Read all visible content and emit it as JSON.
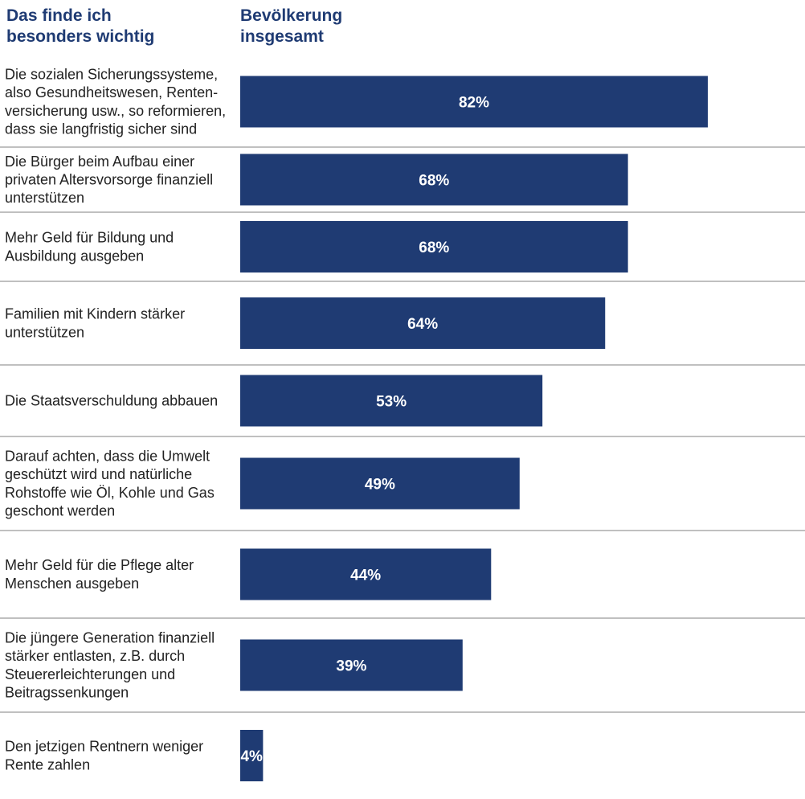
{
  "header": {
    "left_title": [
      "Das finde ich",
      "besonders wichtig"
    ],
    "right_title": [
      "Bevölkerung",
      "insgesamt"
    ]
  },
  "colors": {
    "bar": "#1f3b73",
    "header_text": "#1f3b73",
    "separator": "#9a9a9a",
    "value_label": "#ffffff"
  },
  "chart_data": {
    "type": "bar",
    "orientation": "horizontal",
    "title": "",
    "xlabel": "",
    "ylabel": "",
    "xlim": [
      0,
      100
    ],
    "grid": false,
    "legend": "none",
    "categories": [
      [
        "Die sozialen Sicherungssysteme,",
        "also Gesundheitswesen, Renten-",
        "versicherung usw., so reformieren,",
        "dass sie langfristig sicher sind"
      ],
      [
        "Die Bürger beim Aufbau einer",
        "privaten Altersvorsorge finanziell",
        "unterstützen"
      ],
      [
        "Mehr Geld für Bildung und",
        "Ausbildung ausgeben"
      ],
      [
        "Familien mit Kindern stärker",
        "unterstützen"
      ],
      [
        "Die Staatsverschuldung abbauen"
      ],
      [
        "Darauf achten, dass die Umwelt",
        "geschützt wird und natürliche",
        "Rohstoffe wie Öl, Kohle und Gas",
        "geschont werden"
      ],
      [
        "Mehr Geld für die Pflege alter",
        "Menschen ausgeben"
      ],
      [
        "Die jüngere Generation finanziell",
        "stärker entlasten, z.B. durch",
        "Steuererleichterungen und",
        "Beitragssenkungen"
      ],
      [
        "Den jetzigen Rentnern weniger",
        "Rente zahlen"
      ]
    ],
    "values": [
      82,
      68,
      68,
      64,
      53,
      49,
      44,
      39,
      4
    ],
    "value_labels": [
      "82%",
      "68%",
      "68%",
      "64%",
      "53%",
      "49%",
      "44%",
      "39%",
      "4%"
    ]
  }
}
